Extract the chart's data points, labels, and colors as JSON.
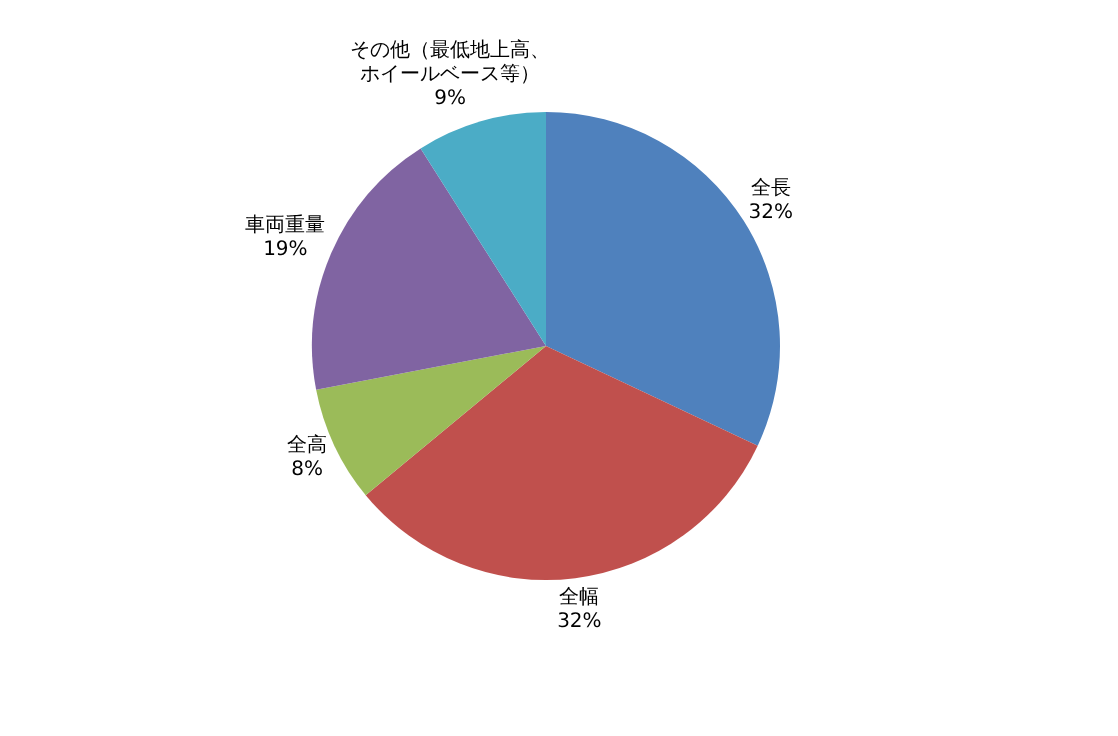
{
  "chart_data": {
    "type": "pie",
    "categories": [
      "全長",
      "全幅",
      "全高",
      "車両重量",
      "その他（最低地上高、ホイールベース等）"
    ],
    "values": [
      32,
      32,
      8,
      19,
      9
    ],
    "value_labels": [
      "32%",
      "32%",
      "8%",
      "19%",
      "9%"
    ],
    "colors": [
      "#4f81bd",
      "#c0504d",
      "#9bbb59",
      "#8064a2",
      "#4bacc6"
    ],
    "legend": false
  }
}
